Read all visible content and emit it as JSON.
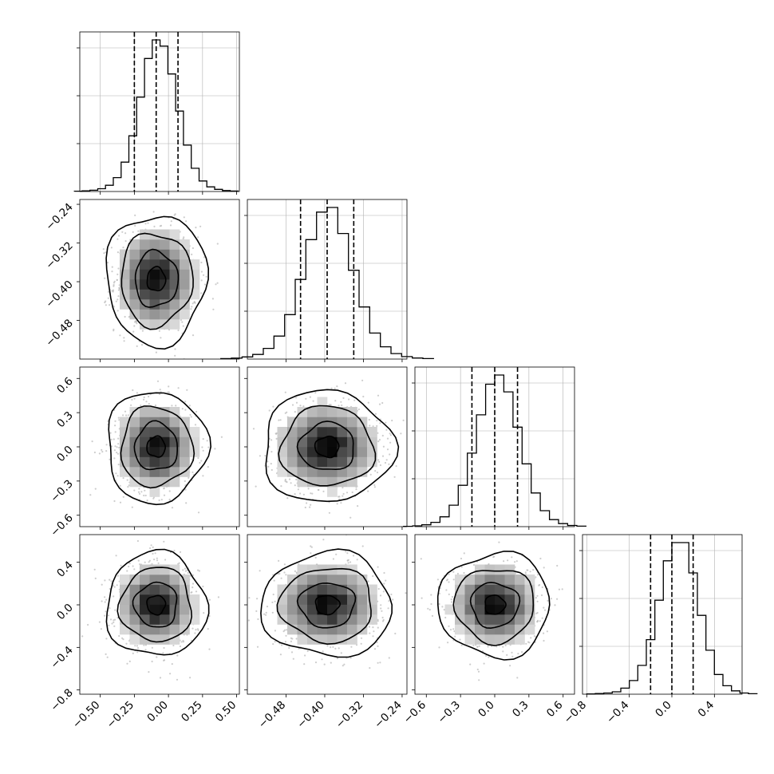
{
  "chart_data": {
    "type": "corner",
    "variables": 4,
    "grid": true,
    "quantiles": [
      0.16,
      0.5,
      0.84
    ],
    "axes": [
      {
        "range": [
          -0.65,
          0.52
        ],
        "ticks": [
          -0.5,
          -0.25,
          0.0,
          0.25,
          0.5
        ],
        "tick_labels": [
          "−0.50",
          "−0.25",
          "0.00",
          "0.25",
          "0.50"
        ],
        "mean": -0.09,
        "sd": 0.15
      },
      {
        "range": [
          -0.56,
          -0.23
        ],
        "ticks": [
          -0.48,
          -0.4,
          -0.32,
          -0.24
        ],
        "tick_labels": [
          "−0.48",
          "−0.40",
          "−0.32",
          "−0.24"
        ],
        "mean": -0.395,
        "sd": 0.055
      },
      {
        "range": [
          -0.7,
          0.7
        ],
        "ticks": [
          -0.6,
          -0.3,
          0.0,
          0.3,
          0.6
        ],
        "tick_labels": [
          "−0.6",
          "−0.3",
          "0.0",
          "0.3",
          "0.6"
        ],
        "mean": 0.0,
        "sd": 0.2
      },
      {
        "range": [
          -0.84,
          0.66
        ],
        "ticks": [
          -0.8,
          -0.4,
          0.0,
          0.4
        ],
        "tick_labels": [
          "−0.8",
          "−0.4",
          "0.0",
          "0.4"
        ],
        "mean": 0.0,
        "sd": 0.2
      }
    ],
    "histograms": [
      {
        "variable": 0,
        "quantile_lines": [
          -0.25,
          -0.09,
          0.07
        ],
        "counts": [
          2,
          4,
          8,
          18,
          40,
          90,
          190,
          360,
          610,
          860,
          980,
          940,
          760,
          520,
          300,
          150,
          68,
          30,
          14,
          6,
          3
        ]
      },
      {
        "variable": 1,
        "quantile_lines": [
          -0.45,
          -0.395,
          -0.34
        ],
        "counts": [
          3,
          6,
          14,
          30,
          70,
          150,
          290,
          520,
          780,
          960,
          990,
          820,
          580,
          340,
          170,
          80,
          36,
          16,
          7,
          3
        ]
      },
      {
        "variable": 2,
        "quantile_lines": [
          -0.2,
          0.0,
          0.2
        ],
        "counts": [
          2,
          5,
          12,
          28,
          64,
          140,
          270,
          480,
          730,
          930,
          990,
          880,
          650,
          410,
          220,
          104,
          46,
          20,
          8,
          3
        ]
      },
      {
        "variable": 3,
        "quantile_lines": [
          -0.2,
          0.0,
          0.2
        ],
        "counts": [
          2,
          4,
          8,
          16,
          40,
          90,
          190,
          360,
          620,
          880,
          1000,
          1000,
          800,
          520,
          290,
          130,
          56,
          22,
          8,
          3
        ]
      }
    ],
    "pairs": [
      {
        "x_variable": 0,
        "y_variable": 1
      },
      {
        "x_variable": 0,
        "y_variable": 2
      },
      {
        "x_variable": 1,
        "y_variable": 2
      },
      {
        "x_variable": 0,
        "y_variable": 3
      },
      {
        "x_variable": 1,
        "y_variable": 3
      },
      {
        "x_variable": 2,
        "y_variable": 3
      }
    ],
    "colors": {
      "lines": "#000000",
      "points": "#b8b8b8",
      "grid": "#b0b0b0"
    }
  }
}
